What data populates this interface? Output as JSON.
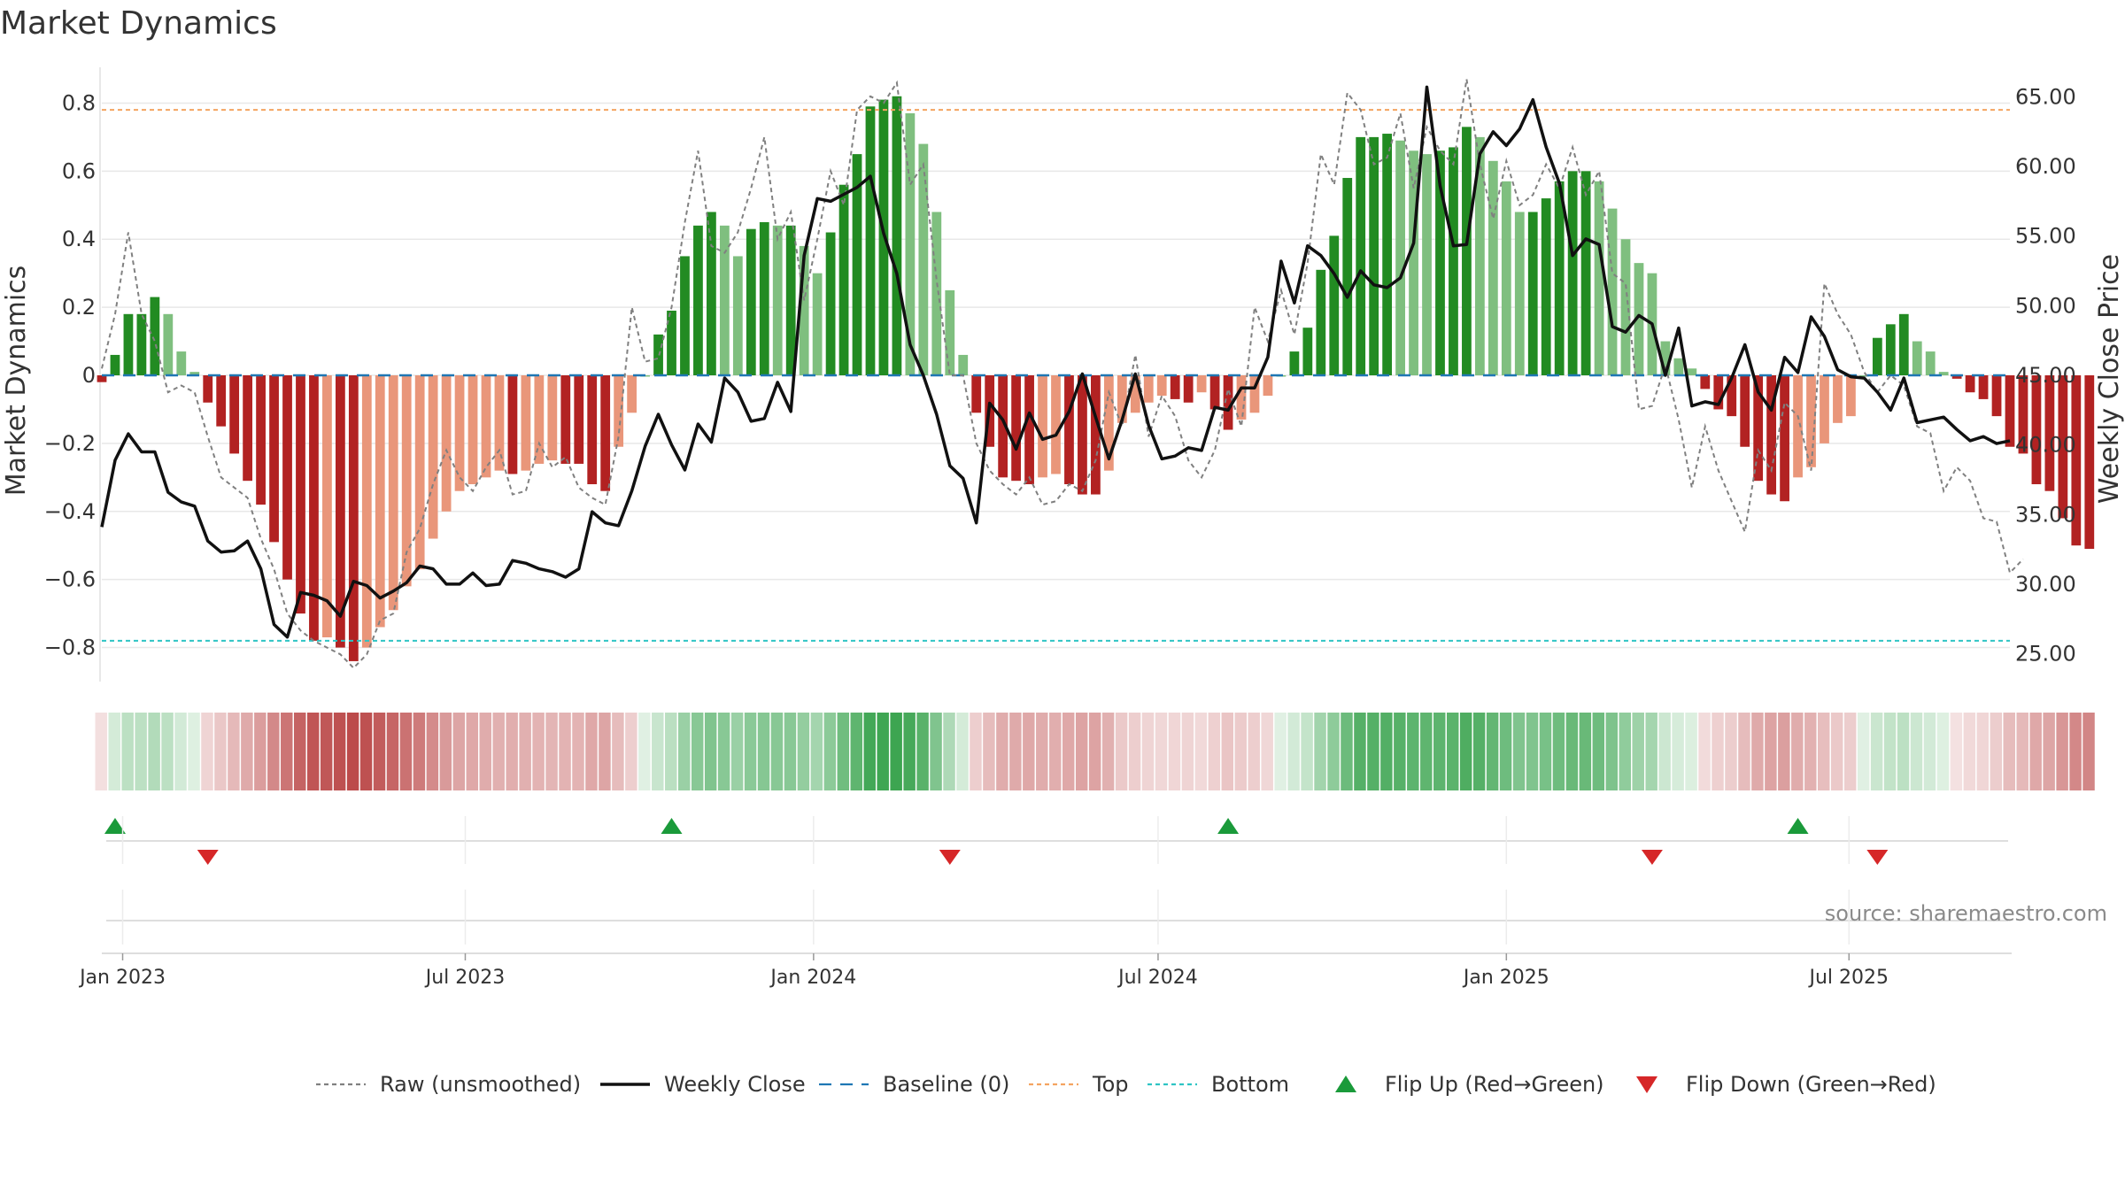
{
  "title": "Market Dynamics",
  "source": "source: sharemaestro.com",
  "colors": {
    "strong_green": "#228b22",
    "light_green": "#7fbf7f",
    "strong_red": "#b22222",
    "light_red": "#e9967a",
    "raw": "#808080",
    "close": "#111111",
    "baseline": "#1f77b4",
    "top": "#f4a460",
    "bottom": "#2ec4c4",
    "flip_up": "#1a9a3a",
    "flip_down": "#d62728"
  },
  "legend": [
    {
      "label": "Raw (unsmoothed)",
      "kind": "dotted-line",
      "color": "#808080"
    },
    {
      "label": "Weekly Close",
      "kind": "solid-line",
      "color": "#111111"
    },
    {
      "label": "Baseline (0)",
      "kind": "dashed-line",
      "color": "#1f77b4"
    },
    {
      "label": "Top",
      "kind": "dotted-line",
      "color": "#f4a460"
    },
    {
      "label": "Bottom",
      "kind": "dotted-line",
      "color": "#2ec4c4"
    },
    {
      "label": "Flip Up (Red→Green)",
      "kind": "triangle-up",
      "color": "#1a9a3a"
    },
    {
      "label": "Flip Down (Green→Red)",
      "kind": "triangle-down",
      "color": "#d62728"
    }
  ],
  "chart_data": {
    "type": "bar",
    "title": "Market Dynamics",
    "ylabel": "Market Dynamics",
    "y2label": "Weekly Close Price",
    "ylim": [
      -0.9,
      0.9
    ],
    "y2lim": [
      23,
      67
    ],
    "yticks": [
      "0.8",
      "0.6",
      "0.4",
      "0.2",
      "0",
      "−0.2",
      "−0.4",
      "−0.6",
      "−0.8"
    ],
    "yticks_values": [
      0.8,
      0.6,
      0.4,
      0.2,
      0,
      -0.2,
      -0.4,
      -0.6,
      -0.8
    ],
    "y2ticks": [
      "65.00",
      "60.00",
      "55.00",
      "50.00",
      "45.00",
      "40.00",
      "35.00",
      "30.00",
      "25.00"
    ],
    "y2ticks_values": [
      65,
      60,
      55,
      50,
      45,
      40,
      35,
      30,
      25
    ],
    "top_line": 0.78,
    "bottom_line": -0.78,
    "baseline": 0,
    "x_start": "2022-12-21",
    "x_end": "2025-09-24",
    "x_ticks": [
      {
        "label": "Jan 2023",
        "date": "2023-01-01"
      },
      {
        "label": "Jul 2023",
        "date": "2023-07-01"
      },
      {
        "label": "Jan 2024",
        "date": "2024-01-01"
      },
      {
        "label": "Jul 2024",
        "date": "2024-07-01"
      },
      {
        "label": "Jan 2025",
        "date": "2025-01-01"
      },
      {
        "label": "Jul 2025",
        "date": "2025-07-01"
      }
    ],
    "flip_up_dates": [
      "2022-12-28",
      "2023-10-18",
      "2024-08-07",
      "2025-06-04"
    ],
    "flip_down_dates": [
      "2023-02-15",
      "2024-03-13",
      "2025-03-19",
      "2025-07-16"
    ],
    "series": [
      {
        "name": "Market Dynamics",
        "type": "bar",
        "x_start": "2022-12-21",
        "interval_days": 7,
        "values": [
          -0.02,
          0.06,
          0.18,
          0.18,
          0.23,
          0.18,
          0.07,
          0.01,
          -0.08,
          -0.15,
          -0.23,
          -0.31,
          -0.38,
          -0.49,
          -0.6,
          -0.7,
          -0.78,
          -0.77,
          -0.8,
          -0.84,
          -0.8,
          -0.74,
          -0.69,
          -0.62,
          -0.57,
          -0.48,
          -0.4,
          -0.34,
          -0.32,
          -0.3,
          -0.28,
          -0.29,
          -0.28,
          -0.26,
          -0.25,
          -0.26,
          -0.26,
          -0.32,
          -0.34,
          -0.21,
          -0.11,
          0.0,
          0.12,
          0.19,
          0.35,
          0.44,
          0.48,
          0.44,
          0.35,
          0.43,
          0.45,
          0.44,
          0.44,
          0.38,
          0.3,
          0.42,
          0.56,
          0.65,
          0.79,
          0.81,
          0.82,
          0.77,
          0.68,
          0.48,
          0.25,
          0.06,
          -0.11,
          -0.21,
          -0.3,
          -0.31,
          -0.32,
          -0.3,
          -0.29,
          -0.32,
          -0.35,
          -0.35,
          -0.28,
          -0.14,
          -0.11,
          -0.08,
          -0.06,
          -0.07,
          -0.08,
          -0.05,
          -0.1,
          -0.16,
          -0.13,
          -0.11,
          -0.06,
          0.0,
          0.07,
          0.14,
          0.31,
          0.41,
          0.58,
          0.7,
          0.7,
          0.71,
          0.69,
          0.66,
          0.65,
          0.66,
          0.67,
          0.73,
          0.7,
          0.63,
          0.57,
          0.48,
          0.48,
          0.52,
          0.57,
          0.6,
          0.6,
          0.57,
          0.49,
          0.4,
          0.33,
          0.3,
          0.1,
          0.05,
          0.02,
          -0.04,
          -0.1,
          -0.12,
          -0.21,
          -0.31,
          -0.35,
          -0.37,
          -0.3,
          -0.27,
          -0.2,
          -0.14,
          -0.12,
          0.0,
          0.11,
          0.15,
          0.18,
          0.1,
          0.07,
          0.01,
          -0.01,
          -0.05,
          -0.07,
          -0.12,
          -0.21,
          -0.23,
          -0.32,
          -0.34,
          -0.42,
          -0.5,
          -0.51
        ]
      },
      {
        "name": "Raw (unsmoothed)",
        "type": "line",
        "x_start": "2022-12-21",
        "interval_days": 7,
        "values": [
          0.02,
          0.18,
          0.42,
          0.18,
          0.1,
          -0.05,
          -0.03,
          -0.05,
          -0.18,
          -0.3,
          -0.33,
          -0.36,
          -0.48,
          -0.57,
          -0.7,
          -0.75,
          -0.78,
          -0.8,
          -0.82,
          -0.86,
          -0.82,
          -0.72,
          -0.7,
          -0.52,
          -0.45,
          -0.32,
          -0.22,
          -0.3,
          -0.34,
          -0.27,
          -0.22,
          -0.35,
          -0.34,
          -0.2,
          -0.27,
          -0.24,
          -0.33,
          -0.36,
          -0.38,
          -0.18,
          0.2,
          0.04,
          0.05,
          0.2,
          0.45,
          0.66,
          0.38,
          0.36,
          0.42,
          0.55,
          0.7,
          0.4,
          0.48,
          0.22,
          0.4,
          0.6,
          0.5,
          0.78,
          0.82,
          0.8,
          0.86,
          0.56,
          0.62,
          0.28,
          0.0,
          0.0,
          -0.2,
          -0.28,
          -0.32,
          -0.35,
          -0.3,
          -0.38,
          -0.37,
          -0.32,
          -0.34,
          -0.25,
          -0.05,
          -0.15,
          0.06,
          -0.18,
          -0.06,
          -0.12,
          -0.25,
          -0.3,
          -0.22,
          -0.04,
          -0.15,
          0.2,
          0.1,
          0.25,
          0.12,
          0.33,
          0.65,
          0.56,
          0.83,
          0.78,
          0.62,
          0.64,
          0.77,
          0.55,
          0.73,
          0.66,
          0.62,
          0.87,
          0.62,
          0.46,
          0.63,
          0.5,
          0.53,
          0.62,
          0.55,
          0.67,
          0.53,
          0.6,
          0.3,
          0.27,
          -0.1,
          -0.09,
          0.03,
          -0.13,
          -0.33,
          -0.15,
          -0.28,
          -0.37,
          -0.46,
          -0.22,
          -0.28,
          -0.08,
          -0.12,
          -0.28,
          0.27,
          0.18,
          0.12,
          0.01,
          -0.05,
          0.0,
          -0.03,
          -0.15,
          -0.17,
          -0.34,
          -0.27,
          -0.31,
          -0.42,
          -0.43,
          -0.58,
          -0.54
        ]
      },
      {
        "name": "Weekly Close",
        "type": "line",
        "axis": "right",
        "x_start": "2022-12-21",
        "interval_days": 7,
        "values": [
          34.1,
          38.9,
          40.8,
          39.5,
          39.5,
          36.6,
          35.9,
          35.6,
          33.1,
          32.3,
          32.4,
          33.1,
          31.1,
          27.1,
          26.2,
          29.4,
          29.2,
          28.8,
          27.7,
          30.2,
          29.9,
          29.0,
          29.5,
          30.1,
          31.3,
          31.1,
          30.0,
          30.0,
          30.8,
          29.9,
          30.0,
          31.7,
          31.5,
          31.1,
          30.9,
          30.5,
          31.1,
          35.2,
          34.4,
          34.2,
          36.7,
          39.9,
          42.2,
          40.0,
          38.2,
          41.5,
          40.2,
          44.8,
          43.8,
          41.7,
          41.9,
          44.5,
          42.4,
          53.6,
          57.7,
          57.5,
          58.0,
          58.5,
          59.3,
          55.2,
          52.3,
          47.2,
          45.0,
          42.2,
          38.5,
          37.6,
          34.4,
          43.0,
          41.8,
          39.7,
          42.3,
          40.4,
          40.7,
          42.4,
          45.1,
          42.0,
          39.0,
          41.8,
          45.1,
          41.4,
          39.0,
          39.2,
          39.8,
          39.6,
          42.7,
          42.5,
          44.1,
          44.1,
          46.3,
          53.2,
          50.2,
          54.3,
          53.6,
          52.3,
          50.6,
          52.5,
          51.5,
          51.3,
          52.0,
          54.5,
          65.7,
          58.6,
          54.3,
          54.4,
          60.9,
          62.5,
          61.5,
          62.7,
          64.8,
          61.4,
          58.8,
          53.6,
          54.8,
          54.4,
          48.5,
          48.1,
          49.3,
          48.7,
          45.0,
          48.4,
          42.8,
          43.1,
          42.9,
          44.8,
          47.2,
          43.8,
          42.5,
          46.3,
          45.2,
          49.2,
          47.8,
          45.4,
          44.9,
          44.8,
          43.8,
          42.5,
          44.8,
          41.6,
          41.8,
          42.0,
          41.1,
          40.3,
          40.6,
          40.1,
          40.3
        ]
      }
    ]
  }
}
